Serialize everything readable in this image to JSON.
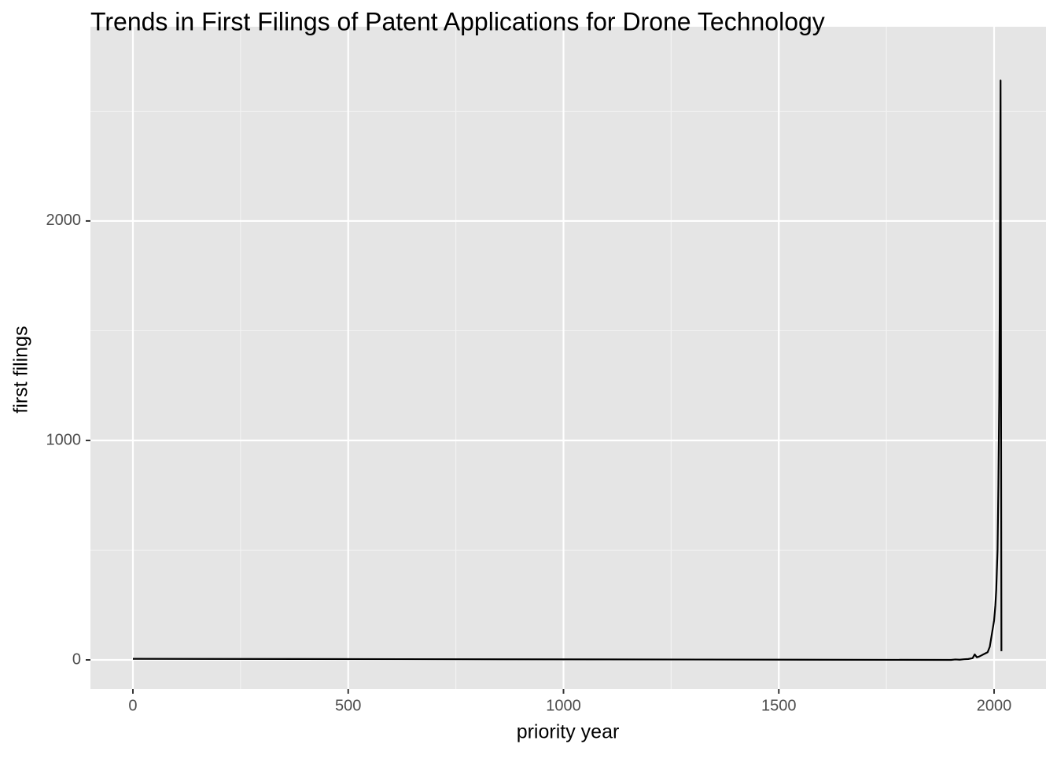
{
  "chart_data": {
    "type": "line",
    "title": "Trends in First Filings of Patent Applications for Drone Technology",
    "x_label": "priority year",
    "y_label": "first filings",
    "x": [
      0,
      1900,
      1910,
      1920,
      1930,
      1940,
      1950,
      1955,
      1960,
      1965,
      1970,
      1975,
      1980,
      1985,
      1990,
      1995,
      2000,
      2003,
      2005,
      2008,
      2010,
      2012,
      2013,
      2014,
      2015,
      2017
    ],
    "values": [
      5,
      0,
      2,
      1,
      3,
      4,
      8,
      25,
      12,
      15,
      20,
      25,
      30,
      35,
      60,
      120,
      180,
      250,
      320,
      500,
      800,
      1200,
      1600,
      2100,
      2640,
      40
    ],
    "color": "#000000",
    "xlim": [
      -98.6,
      2120.5
    ],
    "xticks": [
      0,
      500,
      1000,
      1500,
      2000
    ],
    "x_minor_grid": [
      250,
      750,
      1250,
      1750
    ],
    "ylim": [
      -132.6,
      2885
    ],
    "yticks": [
      0,
      1000,
      2000
    ],
    "y_minor_grid": [
      500,
      1500,
      2500
    ],
    "grid": true
  }
}
